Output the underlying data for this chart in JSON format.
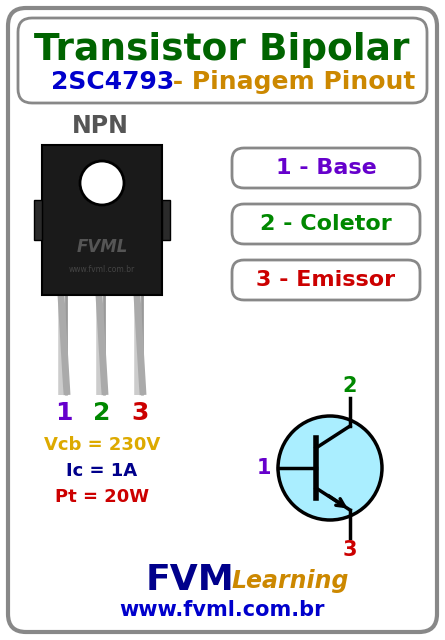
{
  "title1": "Transistor Bipolar",
  "title2_part1": "2SC4793",
  "title2_part2": " - Pinagem Pinout",
  "title1_color": "#006400",
  "title2_color1": "#0000cc",
  "title2_color2": "#cc8800",
  "bg_color": "#ffffff",
  "border_color": "#888888",
  "npn_label": "NPN",
  "pin_labels": [
    "1 - Base",
    "2 - Coletor",
    "3 - Emissor"
  ],
  "pin_colors": [
    "#6600cc",
    "#008800",
    "#cc0000"
  ],
  "pin_box_border": "#888888",
  "pin_numbers": [
    "1",
    "2",
    "3"
  ],
  "pin_num_colors": [
    "#6600cc",
    "#008800",
    "#cc0000"
  ],
  "spec1": "Vcb = 230V",
  "spec2": "Ic = 1A",
  "spec3": "Pt = 20W",
  "spec1_color": "#ddaa00",
  "spec2_color": "#00008B",
  "spec3_color": "#cc0000",
  "fvm_color": "#00008B",
  "learning_color": "#cc8800",
  "website": "www.fvml.com.br",
  "website_color": "#0000cc",
  "transistor_fill": "#aaeeff",
  "transistor_line": "#000000",
  "body_color": "#1a1a1a",
  "body_edge": "#000000",
  "leg_color": "#aaaaaa",
  "hole_color": "#ffffff"
}
